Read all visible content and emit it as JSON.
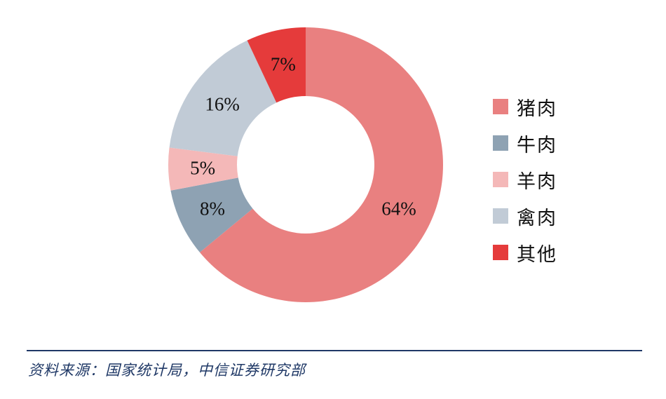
{
  "chart_data": {
    "type": "pie",
    "donut": true,
    "slices": [
      {
        "label": "猪肉",
        "value": 64,
        "display": "64%",
        "color": "#e98080"
      },
      {
        "label": "牛肉",
        "value": 8,
        "display": "8%",
        "color": "#8ea2b3"
      },
      {
        "label": "羊肉",
        "value": 5,
        "display": "5%",
        "color": "#f4b8b8"
      },
      {
        "label": "禽肉",
        "value": 16,
        "display": "16%",
        "color": "#c1cbd6"
      },
      {
        "label": "其他",
        "value": 7,
        "display": "7%",
        "color": "#e53b3b"
      }
    ],
    "legend_position": "right"
  },
  "source_note": "资料来源：国家统计局，中信证券研究部",
  "colors": {
    "rule": "#1f3866",
    "source_text": "#1f3866"
  }
}
